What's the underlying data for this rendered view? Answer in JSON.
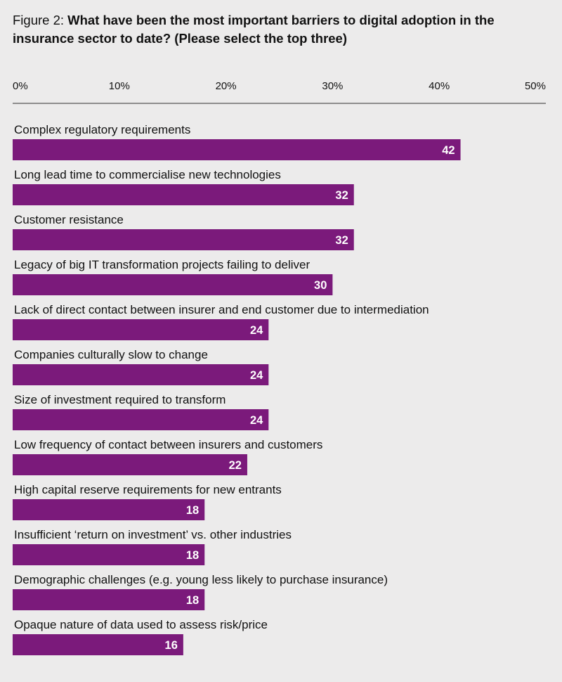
{
  "figure": {
    "prefix": "Figure 2: ",
    "title": "What have been the most important barriers to digital adoption in the insurance sector to date? (Please select the top three)"
  },
  "colors": {
    "bar": "#7b1a7b",
    "axis": "#555555",
    "background": "#ecebeb"
  },
  "chart_data": {
    "type": "bar",
    "orientation": "horizontal",
    "title": "What have been the most important barriers to digital adoption in the insurance sector to date? (Please select the top three)",
    "xlim": [
      0,
      50
    ],
    "x_ticks": [
      0,
      10,
      20,
      30,
      40,
      50
    ],
    "x_tick_labels": [
      "0%",
      "10%",
      "20%",
      "30%",
      "40%",
      "50%"
    ],
    "axis_position": "top",
    "grid": false,
    "legend": "none",
    "categories": [
      "Complex regulatory requirements",
      "Long lead time to commercialise new technologies",
      "Customer resistance",
      "Legacy of big IT transformation projects failing to deliver",
      "Lack of direct contact between insurer and end customer due to intermediation",
      "Companies culturally slow to change",
      "Size of investment required to transform",
      "Low frequency of contact between insurers and customers",
      "High capital reserve requirements for new entrants",
      "Insufficient ‘return on investment’ vs. other industries",
      "Demographic challenges (e.g. young less likely to purchase insurance)",
      "Opaque nature of data used to assess risk/price"
    ],
    "values": [
      42,
      32,
      32,
      30,
      24,
      24,
      24,
      22,
      18,
      18,
      18,
      16
    ]
  }
}
